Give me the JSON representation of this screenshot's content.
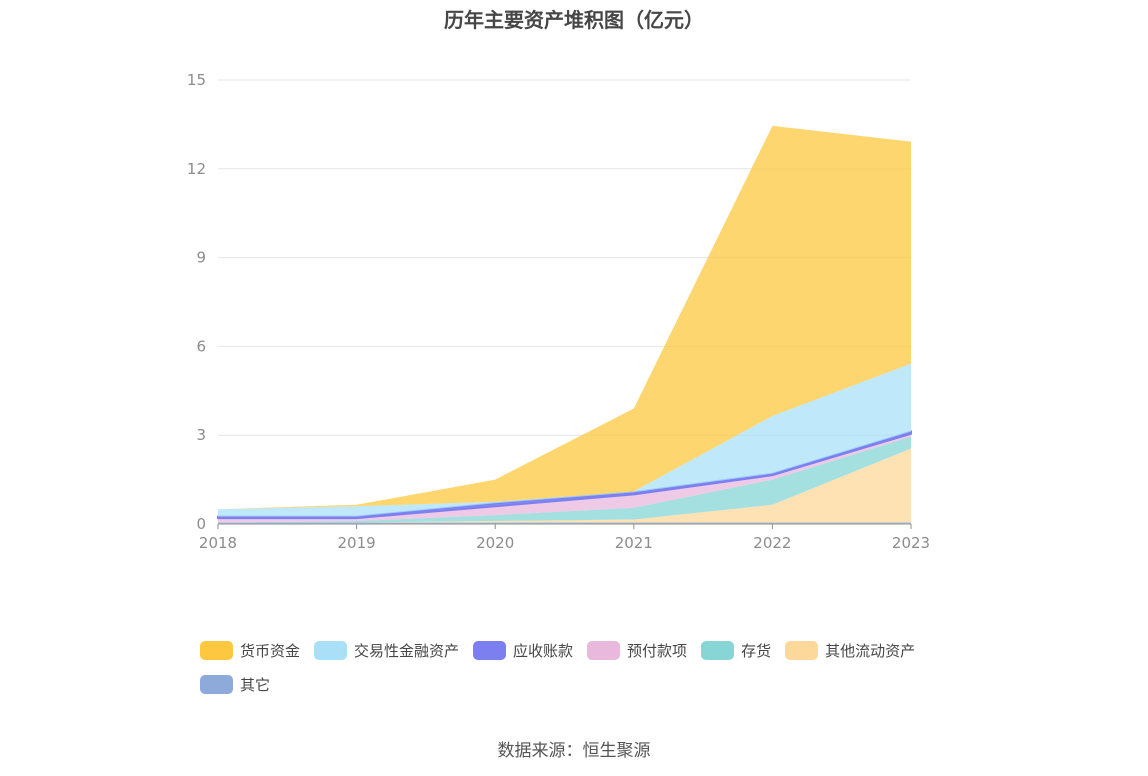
{
  "chart_data": {
    "type": "area",
    "stacked": true,
    "title": "历年主要资产堆积图（亿元）",
    "xlabel": "",
    "ylabel": "",
    "categories": [
      "2018",
      "2019",
      "2020",
      "2021",
      "2022",
      "2023"
    ],
    "ylim": [
      0,
      15
    ],
    "yticks": [
      0,
      3,
      6,
      9,
      12,
      15
    ],
    "grid": true,
    "legend_position": "bottom-left",
    "series": [
      {
        "name": "其它",
        "color": "#8eaadb",
        "values": [
          0.05,
          0.05,
          0.05,
          0.05,
          0.05,
          0.05
        ]
      },
      {
        "name": "其他流动资产",
        "color": "#fdd89b",
        "values": [
          0.0,
          0.0,
          0.05,
          0.1,
          0.6,
          2.5
        ]
      },
      {
        "name": "存货",
        "color": "#87d5d5",
        "values": [
          0.0,
          0.05,
          0.2,
          0.4,
          0.85,
          0.4
        ]
      },
      {
        "name": "预付款项",
        "color": "#e8b8dd",
        "values": [
          0.15,
          0.1,
          0.3,
          0.45,
          0.15,
          0.1
        ]
      },
      {
        "name": "应收账款",
        "color": "#7b7ff0",
        "values": [
          0.05,
          0.05,
          0.1,
          0.07,
          0.05,
          0.07
        ]
      },
      {
        "name": "交易性金融资产",
        "color": "#a9e0f8",
        "values": [
          0.25,
          0.35,
          0.05,
          0.03,
          1.95,
          2.3
        ]
      },
      {
        "name": "货币资金",
        "color": "#fdc840",
        "values": [
          0.0,
          0.05,
          0.75,
          2.8,
          9.8,
          7.5
        ]
      }
    ],
    "legend_order": [
      "货币资金",
      "交易性金融资产",
      "应收账款",
      "预付款项",
      "存货",
      "其他流动资产",
      "其它"
    ]
  },
  "source_text": "数据来源：恒生聚源"
}
